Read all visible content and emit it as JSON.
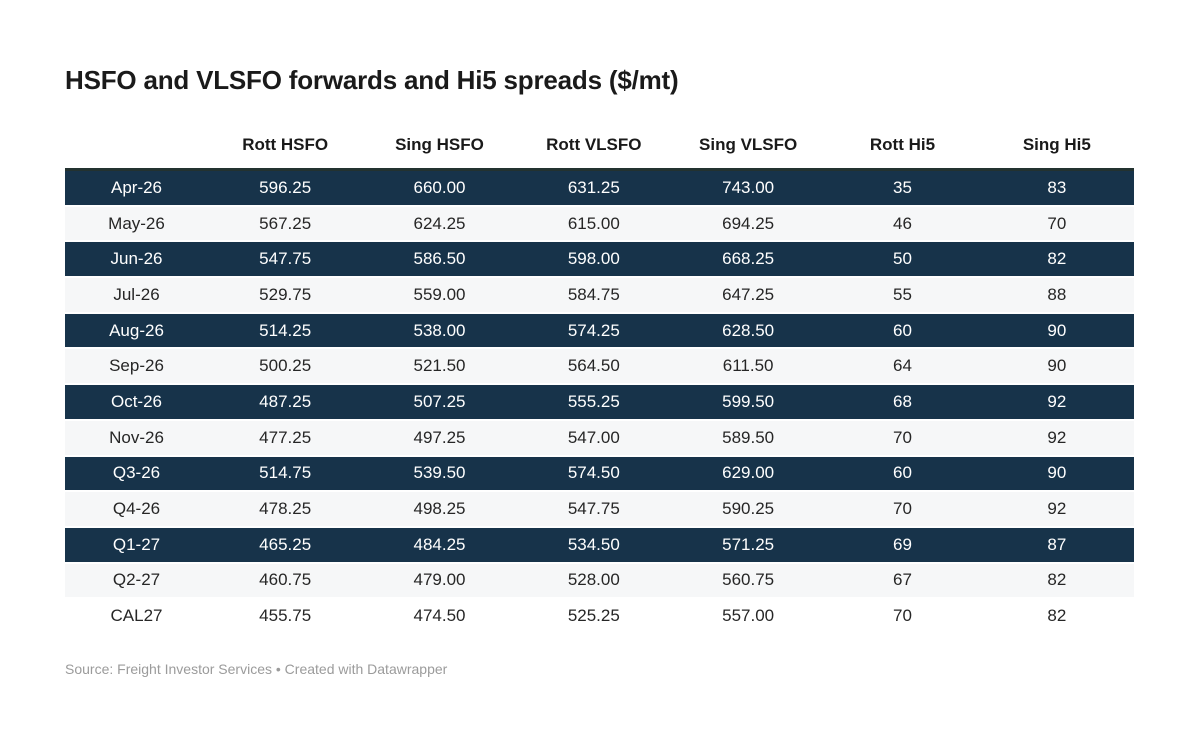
{
  "title": "HSFO and VLSFO forwards and Hi5 spreads ($/mt)",
  "table": {
    "columns": [
      {
        "label": ""
      },
      {
        "label": "Rott HSFO"
      },
      {
        "label": "Sing HSFO"
      },
      {
        "label": "Rott VLSFO"
      },
      {
        "label": "Sing VLSFO"
      },
      {
        "label": "Rott Hi5"
      },
      {
        "label": "Sing Hi5"
      }
    ],
    "rows": [
      {
        "label": "Apr-26",
        "style": "dark",
        "values": [
          "596.25",
          "660.00",
          "631.25",
          "743.00",
          "35",
          "83"
        ]
      },
      {
        "label": "May-26",
        "style": "light",
        "values": [
          "567.25",
          "624.25",
          "615.00",
          "694.25",
          "46",
          "70"
        ]
      },
      {
        "label": "Jun-26",
        "style": "dark",
        "values": [
          "547.75",
          "586.50",
          "598.00",
          "668.25",
          "50",
          "82"
        ]
      },
      {
        "label": "Jul-26",
        "style": "light",
        "values": [
          "529.75",
          "559.00",
          "584.75",
          "647.25",
          "55",
          "88"
        ]
      },
      {
        "label": "Aug-26",
        "style": "dark",
        "values": [
          "514.25",
          "538.00",
          "574.25",
          "628.50",
          "60",
          "90"
        ]
      },
      {
        "label": "Sep-26",
        "style": "light",
        "values": [
          "500.25",
          "521.50",
          "564.50",
          "611.50",
          "64",
          "90"
        ]
      },
      {
        "label": "Oct-26",
        "style": "dark",
        "values": [
          "487.25",
          "507.25",
          "555.25",
          "599.50",
          "68",
          "92"
        ]
      },
      {
        "label": "Nov-26",
        "style": "light",
        "values": [
          "477.25",
          "497.25",
          "547.00",
          "589.50",
          "70",
          "92"
        ]
      },
      {
        "label": "Q3-26",
        "style": "dark",
        "values": [
          "514.75",
          "539.50",
          "574.50",
          "629.00",
          "60",
          "90"
        ]
      },
      {
        "label": "Q4-26",
        "style": "light",
        "values": [
          "478.25",
          "498.25",
          "547.75",
          "590.25",
          "70",
          "92"
        ]
      },
      {
        "label": "Q1-27",
        "style": "dark",
        "values": [
          "465.25",
          "484.25",
          "534.50",
          "571.25",
          "69",
          "87"
        ]
      },
      {
        "label": "Q2-27",
        "style": "light",
        "values": [
          "460.75",
          "479.00",
          "528.00",
          "560.75",
          "67",
          "82"
        ]
      },
      {
        "label": "CAL27",
        "style": "plain",
        "values": [
          "455.75",
          "474.50",
          "525.25",
          "557.00",
          "70",
          "82"
        ]
      }
    ]
  },
  "footer": {
    "source_label": "Source:",
    "source_name": "Freight Investor Services",
    "separator": "•",
    "attribution": "Created with Datawrapper"
  },
  "colors": {
    "dark_row_bg": "#17334a",
    "dark_row_text": "#ffffff",
    "light_row_bg": "#f6f7f8",
    "plain_row_bg": "#ffffff",
    "body_text": "#262626",
    "header_text": "#1a1a1a",
    "muted_text": "#9b9b9b",
    "header_rule": "#233230"
  },
  "chart_data": {
    "type": "table",
    "title": "HSFO and VLSFO forwards and Hi5 spreads ($/mt)",
    "categories": [
      "Apr-26",
      "May-26",
      "Jun-26",
      "Jul-26",
      "Aug-26",
      "Sep-26",
      "Oct-26",
      "Nov-26",
      "Q3-26",
      "Q4-26",
      "Q1-27",
      "Q2-27",
      "CAL27"
    ],
    "series": [
      {
        "name": "Rott HSFO",
        "values": [
          596.25,
          567.25,
          547.75,
          529.75,
          514.25,
          500.25,
          487.25,
          477.25,
          514.75,
          478.25,
          465.25,
          460.75,
          455.75
        ]
      },
      {
        "name": "Sing HSFO",
        "values": [
          660.0,
          624.25,
          586.5,
          559.0,
          538.0,
          521.5,
          507.25,
          497.25,
          539.5,
          498.25,
          484.25,
          479.0,
          474.5
        ]
      },
      {
        "name": "Rott VLSFO",
        "values": [
          631.25,
          615.0,
          598.0,
          584.75,
          574.25,
          564.5,
          555.25,
          547.0,
          574.5,
          547.75,
          534.5,
          528.0,
          525.25
        ]
      },
      {
        "name": "Sing VLSFO",
        "values": [
          743.0,
          694.25,
          668.25,
          647.25,
          628.5,
          611.5,
          599.5,
          589.5,
          629.0,
          590.25,
          571.25,
          560.75,
          557.0
        ]
      },
      {
        "name": "Rott Hi5",
        "values": [
          35,
          46,
          50,
          55,
          60,
          64,
          68,
          70,
          60,
          70,
          69,
          67,
          70
        ]
      },
      {
        "name": "Sing Hi5",
        "values": [
          83,
          70,
          82,
          88,
          90,
          90,
          92,
          92,
          90,
          92,
          87,
          82,
          82
        ]
      }
    ],
    "source": "Freight Investor Services",
    "attribution": "Created with Datawrapper"
  }
}
